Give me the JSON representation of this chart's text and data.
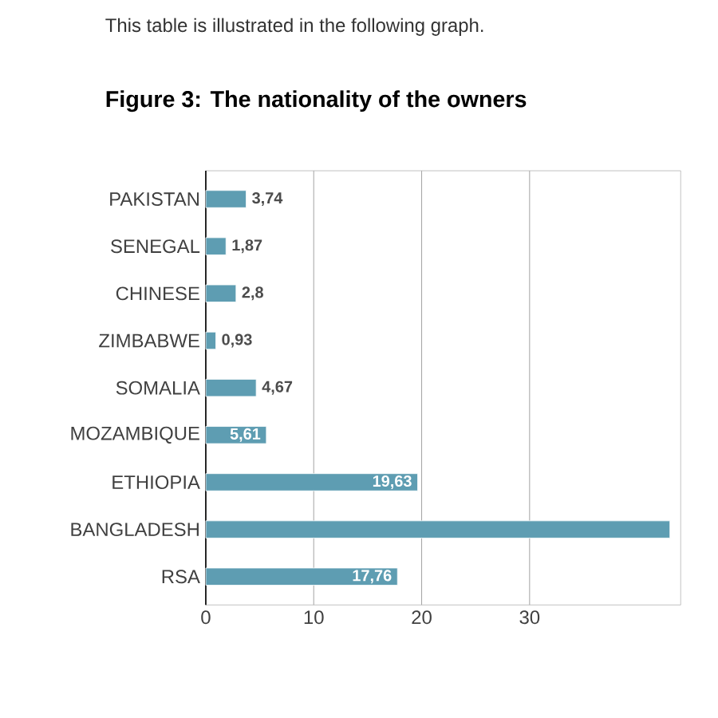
{
  "chart_data": {
    "type": "bar",
    "orientation": "horizontal",
    "title": "Figure 3: The nationality of the owners",
    "annotations": [
      "This table is illustrated in the following graph."
    ],
    "categories": [
      "PAKISTAN",
      "SENEGAL",
      "CHINESE",
      "ZIMBABWE",
      "SOMALIA",
      "MOZAMBIQUE",
      "ETHIOPIA",
      "BANGLADESH",
      "RSA"
    ],
    "values": [
      3.74,
      1.87,
      2.8,
      0.93,
      4.67,
      5.61,
      19.63,
      43,
      17.76
    ],
    "value_labels": [
      "3,74",
      "1,87",
      "2,8",
      "0,93",
      "4,67",
      "5,61",
      "19,63",
      null,
      "17,76"
    ],
    "color": "#5e9db2",
    "xlim": [
      0,
      44
    ],
    "xticks": [
      0,
      10,
      20,
      30
    ],
    "grid": "x"
  }
}
